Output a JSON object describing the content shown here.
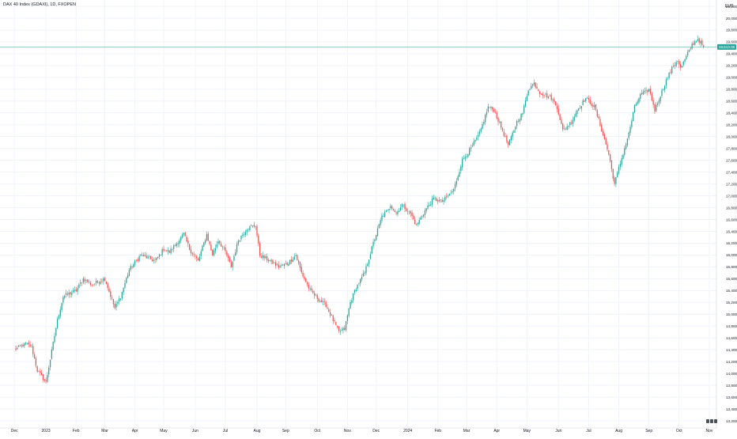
{
  "chart_data": {
    "type": "candlestick",
    "legend_title": "DAX 40 Index (GDAXI), 1D, FXOPEN",
    "currency_label": "EUR",
    "last_price_label": "19,513.06",
    "last_price": 19513,
    "ylim": [
      13200,
      20200
    ],
    "yticks": [
      13200,
      13400,
      13600,
      13800,
      14000,
      14200,
      14400,
      14600,
      14800,
      15000,
      15200,
      15400,
      15600,
      15800,
      16000,
      16200,
      16400,
      16600,
      16800,
      17000,
      17200,
      17400,
      17600,
      17800,
      18000,
      18200,
      18400,
      18600,
      18800,
      19000,
      19200,
      19400,
      19600,
      19800,
      20000,
      20200
    ],
    "ytick_labels": [
      "13,200.0",
      "13,400.0",
      "13,600.0",
      "13,800.0",
      "14,000.0",
      "14,200.0",
      "14,400.0",
      "14,600.0",
      "14,800.0",
      "15,000.0",
      "15,200.0",
      "15,400.0",
      "15,600.0",
      "15,800.0",
      "16,000.0",
      "16,200.0",
      "16,400.0",
      "16,600.0",
      "16,800.0",
      "17,000.0",
      "17,200.0",
      "17,400.0",
      "17,600.0",
      "17,800.0",
      "18,000.0",
      "18,200.0",
      "18,400.0",
      "18,600.0",
      "18,800.0",
      "19,000.0",
      "19,200.0",
      "19,400.0",
      "19,600.0",
      "19,800.0",
      "20,000.0",
      "20,200.0"
    ],
    "x_labels": [
      "Dec",
      "2023",
      "Feb",
      "Mar",
      "Apr",
      "May",
      "Jun",
      "Jul",
      "Aug",
      "Sep",
      "Oct",
      "Nov",
      "Dec",
      "2024",
      "Feb",
      "Mar",
      "Apr",
      "May",
      "Jun",
      "Jul",
      "Aug",
      "Sep",
      "Oct",
      "Nov"
    ],
    "x_label_positions": [
      0,
      22,
      43,
      63,
      84,
      104,
      126,
      147,
      169,
      189,
      211,
      232,
      252,
      274,
      295,
      315,
      336,
      357,
      379,
      400,
      421,
      442,
      463,
      484
    ],
    "x_range": [
      -10,
      489
    ],
    "key_prices": [
      [
        0,
        14400
      ],
      [
        8,
        14500
      ],
      [
        12,
        14450
      ],
      [
        16,
        14050
      ],
      [
        22,
        13850
      ],
      [
        30,
        14900
      ],
      [
        34,
        15300
      ],
      [
        43,
        15400
      ],
      [
        48,
        15600
      ],
      [
        54,
        15500
      ],
      [
        63,
        15600
      ],
      [
        70,
        15100
      ],
      [
        74,
        15300
      ],
      [
        80,
        15750
      ],
      [
        88,
        16000
      ],
      [
        98,
        15900
      ],
      [
        104,
        16100
      ],
      [
        108,
        16050
      ],
      [
        118,
        16350
      ],
      [
        122,
        16100
      ],
      [
        128,
        15900
      ],
      [
        134,
        16350
      ],
      [
        138,
        16000
      ],
      [
        142,
        16250
      ],
      [
        147,
        16050
      ],
      [
        151,
        15800
      ],
      [
        156,
        16250
      ],
      [
        162,
        16450
      ],
      [
        168,
        16500
      ],
      [
        171,
        16000
      ],
      [
        178,
        15900
      ],
      [
        184,
        15800
      ],
      [
        190,
        15850
      ],
      [
        196,
        16000
      ],
      [
        200,
        15700
      ],
      [
        206,
        15400
      ],
      [
        212,
        15250
      ],
      [
        217,
        15150
      ],
      [
        222,
        14900
      ],
      [
        226,
        14700
      ],
      [
        230,
        14750
      ],
      [
        234,
        15200
      ],
      [
        238,
        15450
      ],
      [
        244,
        15700
      ],
      [
        250,
        16200
      ],
      [
        256,
        16650
      ],
      [
        260,
        16750
      ],
      [
        262,
        16850
      ],
      [
        266,
        16700
      ],
      [
        270,
        16850
      ],
      [
        276,
        16700
      ],
      [
        280,
        16500
      ],
      [
        286,
        16750
      ],
      [
        292,
        16950
      ],
      [
        298,
        16900
      ],
      [
        306,
        17100
      ],
      [
        312,
        17600
      ],
      [
        318,
        17800
      ],
      [
        324,
        18050
      ],
      [
        330,
        18500
      ],
      [
        334,
        18450
      ],
      [
        340,
        18100
      ],
      [
        344,
        17850
      ],
      [
        350,
        18250
      ],
      [
        354,
        18400
      ],
      [
        358,
        18800
      ],
      [
        362,
        18900
      ],
      [
        366,
        18750
      ],
      [
        374,
        18650
      ],
      [
        378,
        18500
      ],
      [
        382,
        18100
      ],
      [
        388,
        18250
      ],
      [
        392,
        18450
      ],
      [
        398,
        18650
      ],
      [
        404,
        18500
      ],
      [
        408,
        18200
      ],
      [
        414,
        17700
      ],
      [
        418,
        17200
      ],
      [
        422,
        17550
      ],
      [
        428,
        18050
      ],
      [
        432,
        18500
      ],
      [
        436,
        18700
      ],
      [
        440,
        18750
      ],
      [
        442,
        18800
      ],
      [
        446,
        18450
      ],
      [
        450,
        18700
      ],
      [
        454,
        18950
      ],
      [
        458,
        19150
      ],
      [
        462,
        19300
      ],
      [
        464,
        19150
      ],
      [
        468,
        19350
      ],
      [
        472,
        19550
      ],
      [
        476,
        19650
      ],
      [
        480,
        19513
      ]
    ],
    "colors": {
      "up": "#26a69a",
      "down": "#ef5350",
      "grid": "#f0f3fa",
      "axis_text": "#131722",
      "price_line": "#26a69a"
    }
  }
}
